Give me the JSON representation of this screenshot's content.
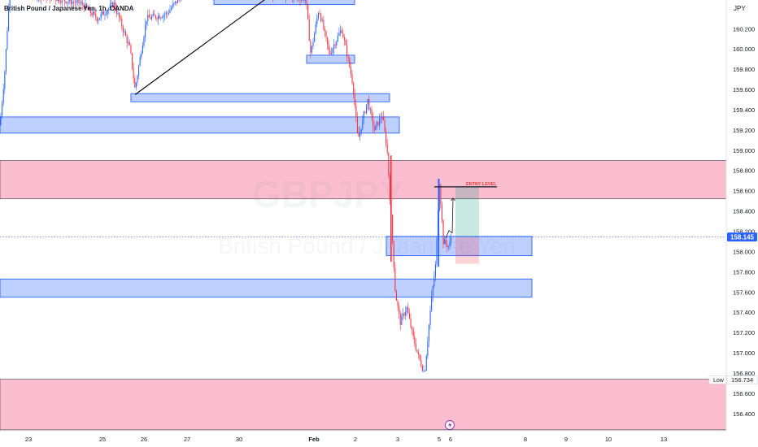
{
  "chart_data": {
    "type": "candlestick",
    "legend": "British Pound / Japanese Yen, 1h, OANDA",
    "watermark_symbol": "GBPJPY",
    "watermark_name": "British Pound / Japanese Yen",
    "price_axis_unit": "JPY",
    "price_ticks": [
      "160.200",
      "160.000",
      "159.800",
      "159.600",
      "159.400",
      "159.200",
      "159.000",
      "158.800",
      "158.600",
      "158.400",
      "158.200",
      "158.000",
      "157.800",
      "157.600",
      "157.400",
      "157.200",
      "157.000",
      "156.800",
      "156.600",
      "156.400"
    ],
    "time_ticks": [
      "23",
      "25",
      "26",
      "27",
      "30",
      "Feb",
      "2",
      "3",
      "5",
      "6",
      "8",
      "9",
      "10",
      "13"
    ],
    "current_price": "158.145",
    "low_label": "Low",
    "low_value": "156.734",
    "entry_label": "ENTRY LEVEL",
    "zones": [
      {
        "kind": "supply",
        "top": 158.9,
        "bottom": 158.52
      },
      {
        "kind": "demand",
        "top": 156.74,
        "bottom": 156.24
      },
      {
        "kind": "box",
        "top": 160.5,
        "bottom": 160.44
      },
      {
        "kind": "box",
        "top": 159.94,
        "bottom": 159.86
      },
      {
        "kind": "box",
        "top": 159.56,
        "bottom": 159.48
      },
      {
        "kind": "box",
        "top": 159.33,
        "bottom": 159.17
      },
      {
        "kind": "box",
        "top": 158.15,
        "bottom": 157.96
      },
      {
        "kind": "box",
        "top": 157.73,
        "bottom": 157.55
      }
    ],
    "entry_price": 158.64,
    "target_price": 158.64,
    "stop_price": 157.88,
    "trend_line": {
      "from_price": 159.55,
      "to_price": 160.55
    }
  }
}
